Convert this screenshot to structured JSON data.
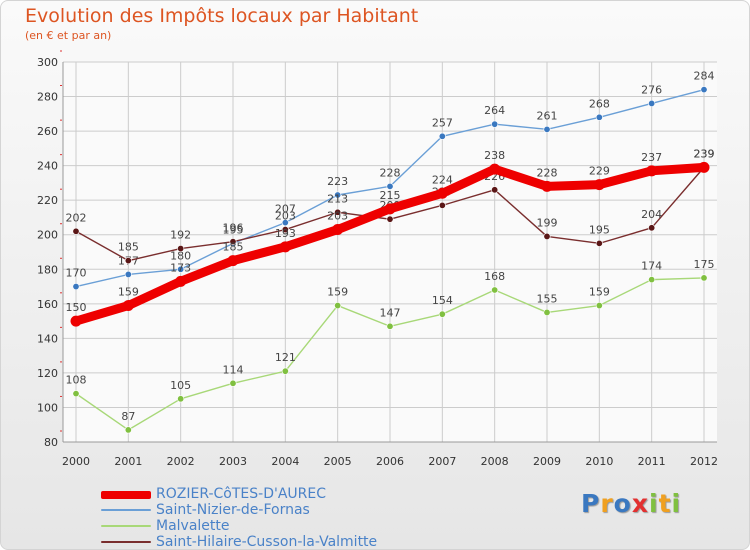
{
  "chart_data": {
    "type": "line",
    "title": "Evolution des Impôts locaux par Habitant",
    "subtitle": "(en € et par an)",
    "xlabel": "",
    "ylabel": "",
    "ylim": [
      80,
      300
    ],
    "yticks": [
      80,
      100,
      120,
      140,
      160,
      180,
      200,
      220,
      240,
      260,
      280,
      300
    ],
    "grid": true,
    "x": [
      2000,
      2001,
      2002,
      2003,
      2004,
      2005,
      2006,
      2007,
      2008,
      2009,
      2010,
      2011,
      2012
    ],
    "series": [
      {
        "name": "Saint-Nizier-de-Fornas",
        "color": "#6a9fd6",
        "marker_color": "#3a78c0",
        "values": [
          170,
          177,
          180,
          195,
          207,
          223,
          228,
          257,
          264,
          261,
          268,
          276,
          284
        ]
      },
      {
        "name": "Malvalette",
        "color": "#a8d878",
        "marker_color": "#80c040",
        "values": [
          108,
          87,
          105,
          114,
          121,
          159,
          147,
          154,
          168,
          155,
          159,
          174,
          175
        ]
      },
      {
        "name": "Saint-Hilaire-Cusson-la-Valmitte",
        "color": "#7a2e2e",
        "marker_color": "#5a1616",
        "values": [
          202,
          185,
          192,
          196,
          203,
          213,
          209,
          217,
          226,
          199,
          195,
          204,
          239
        ]
      },
      {
        "name": "ROZIER-CôTES-D'AUREC",
        "color": "#ee0000",
        "marker_color": "#ee0000",
        "values": [
          150,
          159,
          173,
          185,
          193,
          203,
          215,
          224,
          238,
          228,
          229,
          237,
          239
        ]
      }
    ],
    "legend": [
      "ROZIER-CôTES-D'AUREC",
      "Saint-Nizier-de-Fornas",
      "Malvalette",
      "Saint-Hilaire-Cusson-la-Valmitte"
    ],
    "legend_position": "bottom-left"
  },
  "logo": {
    "text": "Proxiti",
    "letters": [
      {
        "ch": "P",
        "color": "#3a78c0"
      },
      {
        "ch": "r",
        "color": "#f0a020"
      },
      {
        "ch": "o",
        "color": "#3a78c0"
      },
      {
        "ch": "x",
        "color": "#e23030"
      },
      {
        "ch": "i",
        "color": "#80c040"
      },
      {
        "ch": "t",
        "color": "#f0a020"
      },
      {
        "ch": "i",
        "color": "#80c040"
      }
    ]
  }
}
